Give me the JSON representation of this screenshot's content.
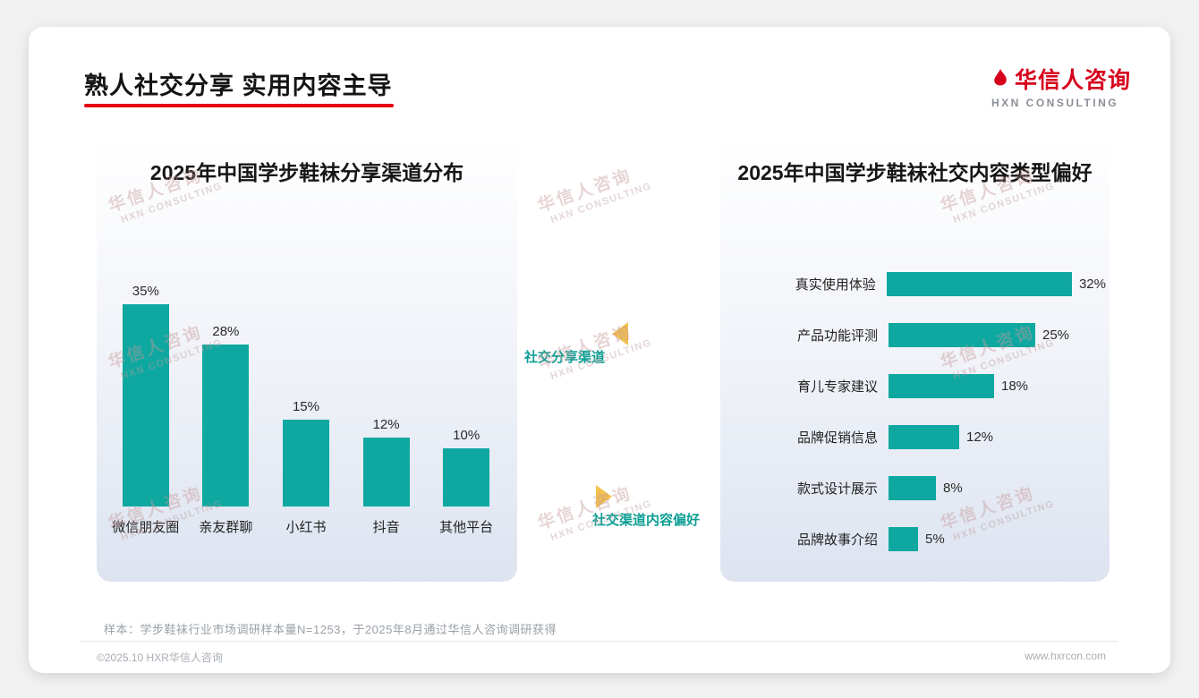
{
  "page": {
    "title": "熟人社交分享 实用内容主导",
    "note": "样本：学步鞋袜行业市场调研样本量N=1253，于2025年8月通过华信人咨询调研获得",
    "footer_left": "©2025.10 HXR华信人咨询",
    "footer_right": "www.hxrcon.com"
  },
  "logo": {
    "name": "华信人咨询",
    "sub": "HXN CONSULTING"
  },
  "watermark": {
    "line1": "华信人咨询",
    "line2": "HXN CONSULTING"
  },
  "connector": {
    "top_label": "社交分享渠道",
    "bottom_label": "社交渠道内容偏好"
  },
  "colors": {
    "bar_teal": "#0fa8a1",
    "accent_red": "#e60012",
    "arrow_gold": "#f2c14e",
    "connector_teal": "#0c9e94"
  },
  "chart_data": [
    {
      "type": "bar",
      "title": "2025年中国学步鞋袜分享渠道分布",
      "categories": [
        "微信朋友圈",
        "亲友群聊",
        "小红书",
        "抖音",
        "其他平台"
      ],
      "values": [
        35,
        28,
        15,
        12,
        10
      ],
      "unit": "%",
      "ylim": [
        0,
        40
      ],
      "grid": false,
      "legend": "none"
    },
    {
      "type": "bar-horizontal",
      "title": "2025年中国学步鞋袜社交内容类型偏好",
      "categories": [
        "真实使用体验",
        "产品功能评测",
        "育儿专家建议",
        "品牌促销信息",
        "款式设计展示",
        "品牌故事介绍"
      ],
      "values": [
        32,
        25,
        18,
        12,
        8,
        5
      ],
      "unit": "%",
      "xlim": [
        0,
        35
      ],
      "grid": false,
      "legend": "none"
    }
  ]
}
